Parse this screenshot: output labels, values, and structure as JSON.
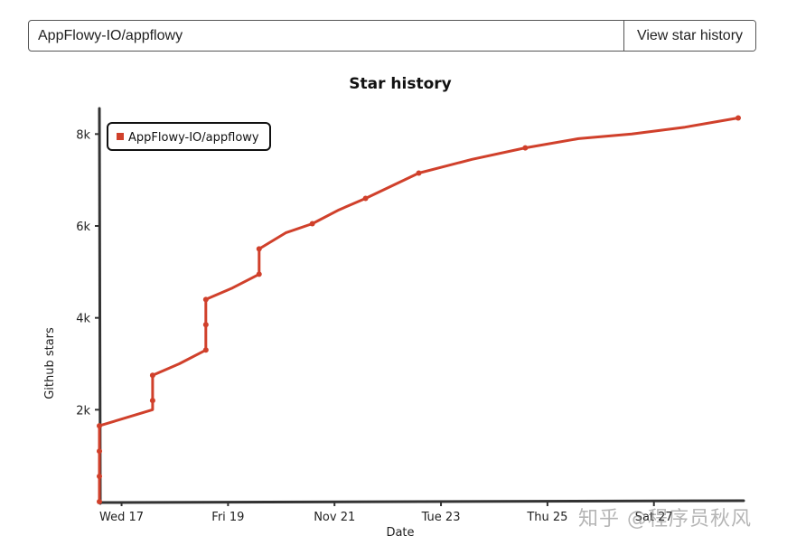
{
  "search": {
    "value": "AppFlowy-IO/appflowy",
    "button_label": "View star history"
  },
  "colors": {
    "series": "#d0402b",
    "axis": "#333333"
  },
  "watermark": "知乎 @程序员秋风",
  "chart_data": {
    "type": "line",
    "title": "Star history",
    "xlabel": "Date",
    "ylabel": "Github stars",
    "x_ticks": [
      "Wed 17",
      "Fri 19",
      "Nov 21",
      "Tue 23",
      "Thu 25",
      "Sat 27"
    ],
    "x_tick_dates": [
      "2021-11-17",
      "2021-11-19",
      "2021-11-21",
      "2021-11-23",
      "2021-11-25",
      "2021-11-27"
    ],
    "y_ticks": [
      2000,
      4000,
      6000,
      8000
    ],
    "y_tick_labels": [
      "2k",
      "4k",
      "6k",
      "8k"
    ],
    "xlim": [
      "2021-11-16T14:00",
      "2021-11-28T14:00"
    ],
    "ylim": [
      0,
      8400
    ],
    "grid": false,
    "legend_position": "top-left",
    "series": [
      {
        "name": "AppFlowy-IO/appflowy",
        "points": [
          {
            "date": "2021-11-16T14:00",
            "stars": 0
          },
          {
            "date": "2021-11-16T14:00",
            "stars": 550
          },
          {
            "date": "2021-11-16T14:00",
            "stars": 1100
          },
          {
            "date": "2021-11-16T14:00",
            "stars": 1650
          },
          {
            "date": "2021-11-17T14:00",
            "stars": 2000
          },
          {
            "date": "2021-11-17T14:00",
            "stars": 2200
          },
          {
            "date": "2021-11-17T14:00",
            "stars": 2750
          },
          {
            "date": "2021-11-18T02:00",
            "stars": 3000
          },
          {
            "date": "2021-11-18T14:00",
            "stars": 3300
          },
          {
            "date": "2021-11-18T14:00",
            "stars": 3850
          },
          {
            "date": "2021-11-18T14:00",
            "stars": 4400
          },
          {
            "date": "2021-11-19T02:00",
            "stars": 4650
          },
          {
            "date": "2021-11-19T14:00",
            "stars": 4950
          },
          {
            "date": "2021-11-19T14:00",
            "stars": 5500
          },
          {
            "date": "2021-11-20T02:00",
            "stars": 5850
          },
          {
            "date": "2021-11-20T14:00",
            "stars": 6050
          },
          {
            "date": "2021-11-21T02:00",
            "stars": 6350
          },
          {
            "date": "2021-11-21T14:00",
            "stars": 6600
          },
          {
            "date": "2021-11-22T14:00",
            "stars": 7150
          },
          {
            "date": "2021-11-23T14:00",
            "stars": 7450
          },
          {
            "date": "2021-11-24T14:00",
            "stars": 7700
          },
          {
            "date": "2021-11-25T14:00",
            "stars": 7900
          },
          {
            "date": "2021-11-26T14:00",
            "stars": 8000
          },
          {
            "date": "2021-11-27T14:00",
            "stars": 8150
          },
          {
            "date": "2021-11-28T14:00",
            "stars": 8350
          }
        ],
        "markers": [
          "2021-11-16T14:00|0",
          "2021-11-16T14:00|550",
          "2021-11-16T14:00|1100",
          "2021-11-16T14:00|1650",
          "2021-11-17T14:00|2200",
          "2021-11-17T14:00|2750",
          "2021-11-18T14:00|3300",
          "2021-11-18T14:00|3850",
          "2021-11-18T14:00|4400",
          "2021-11-19T14:00|4950",
          "2021-11-19T14:00|5500",
          "2021-11-20T14:00|6050",
          "2021-11-21T14:00|6600",
          "2021-11-22T14:00|7150",
          "2021-11-24T14:00|7700",
          "2021-11-28T14:00|8350"
        ]
      }
    ]
  }
}
